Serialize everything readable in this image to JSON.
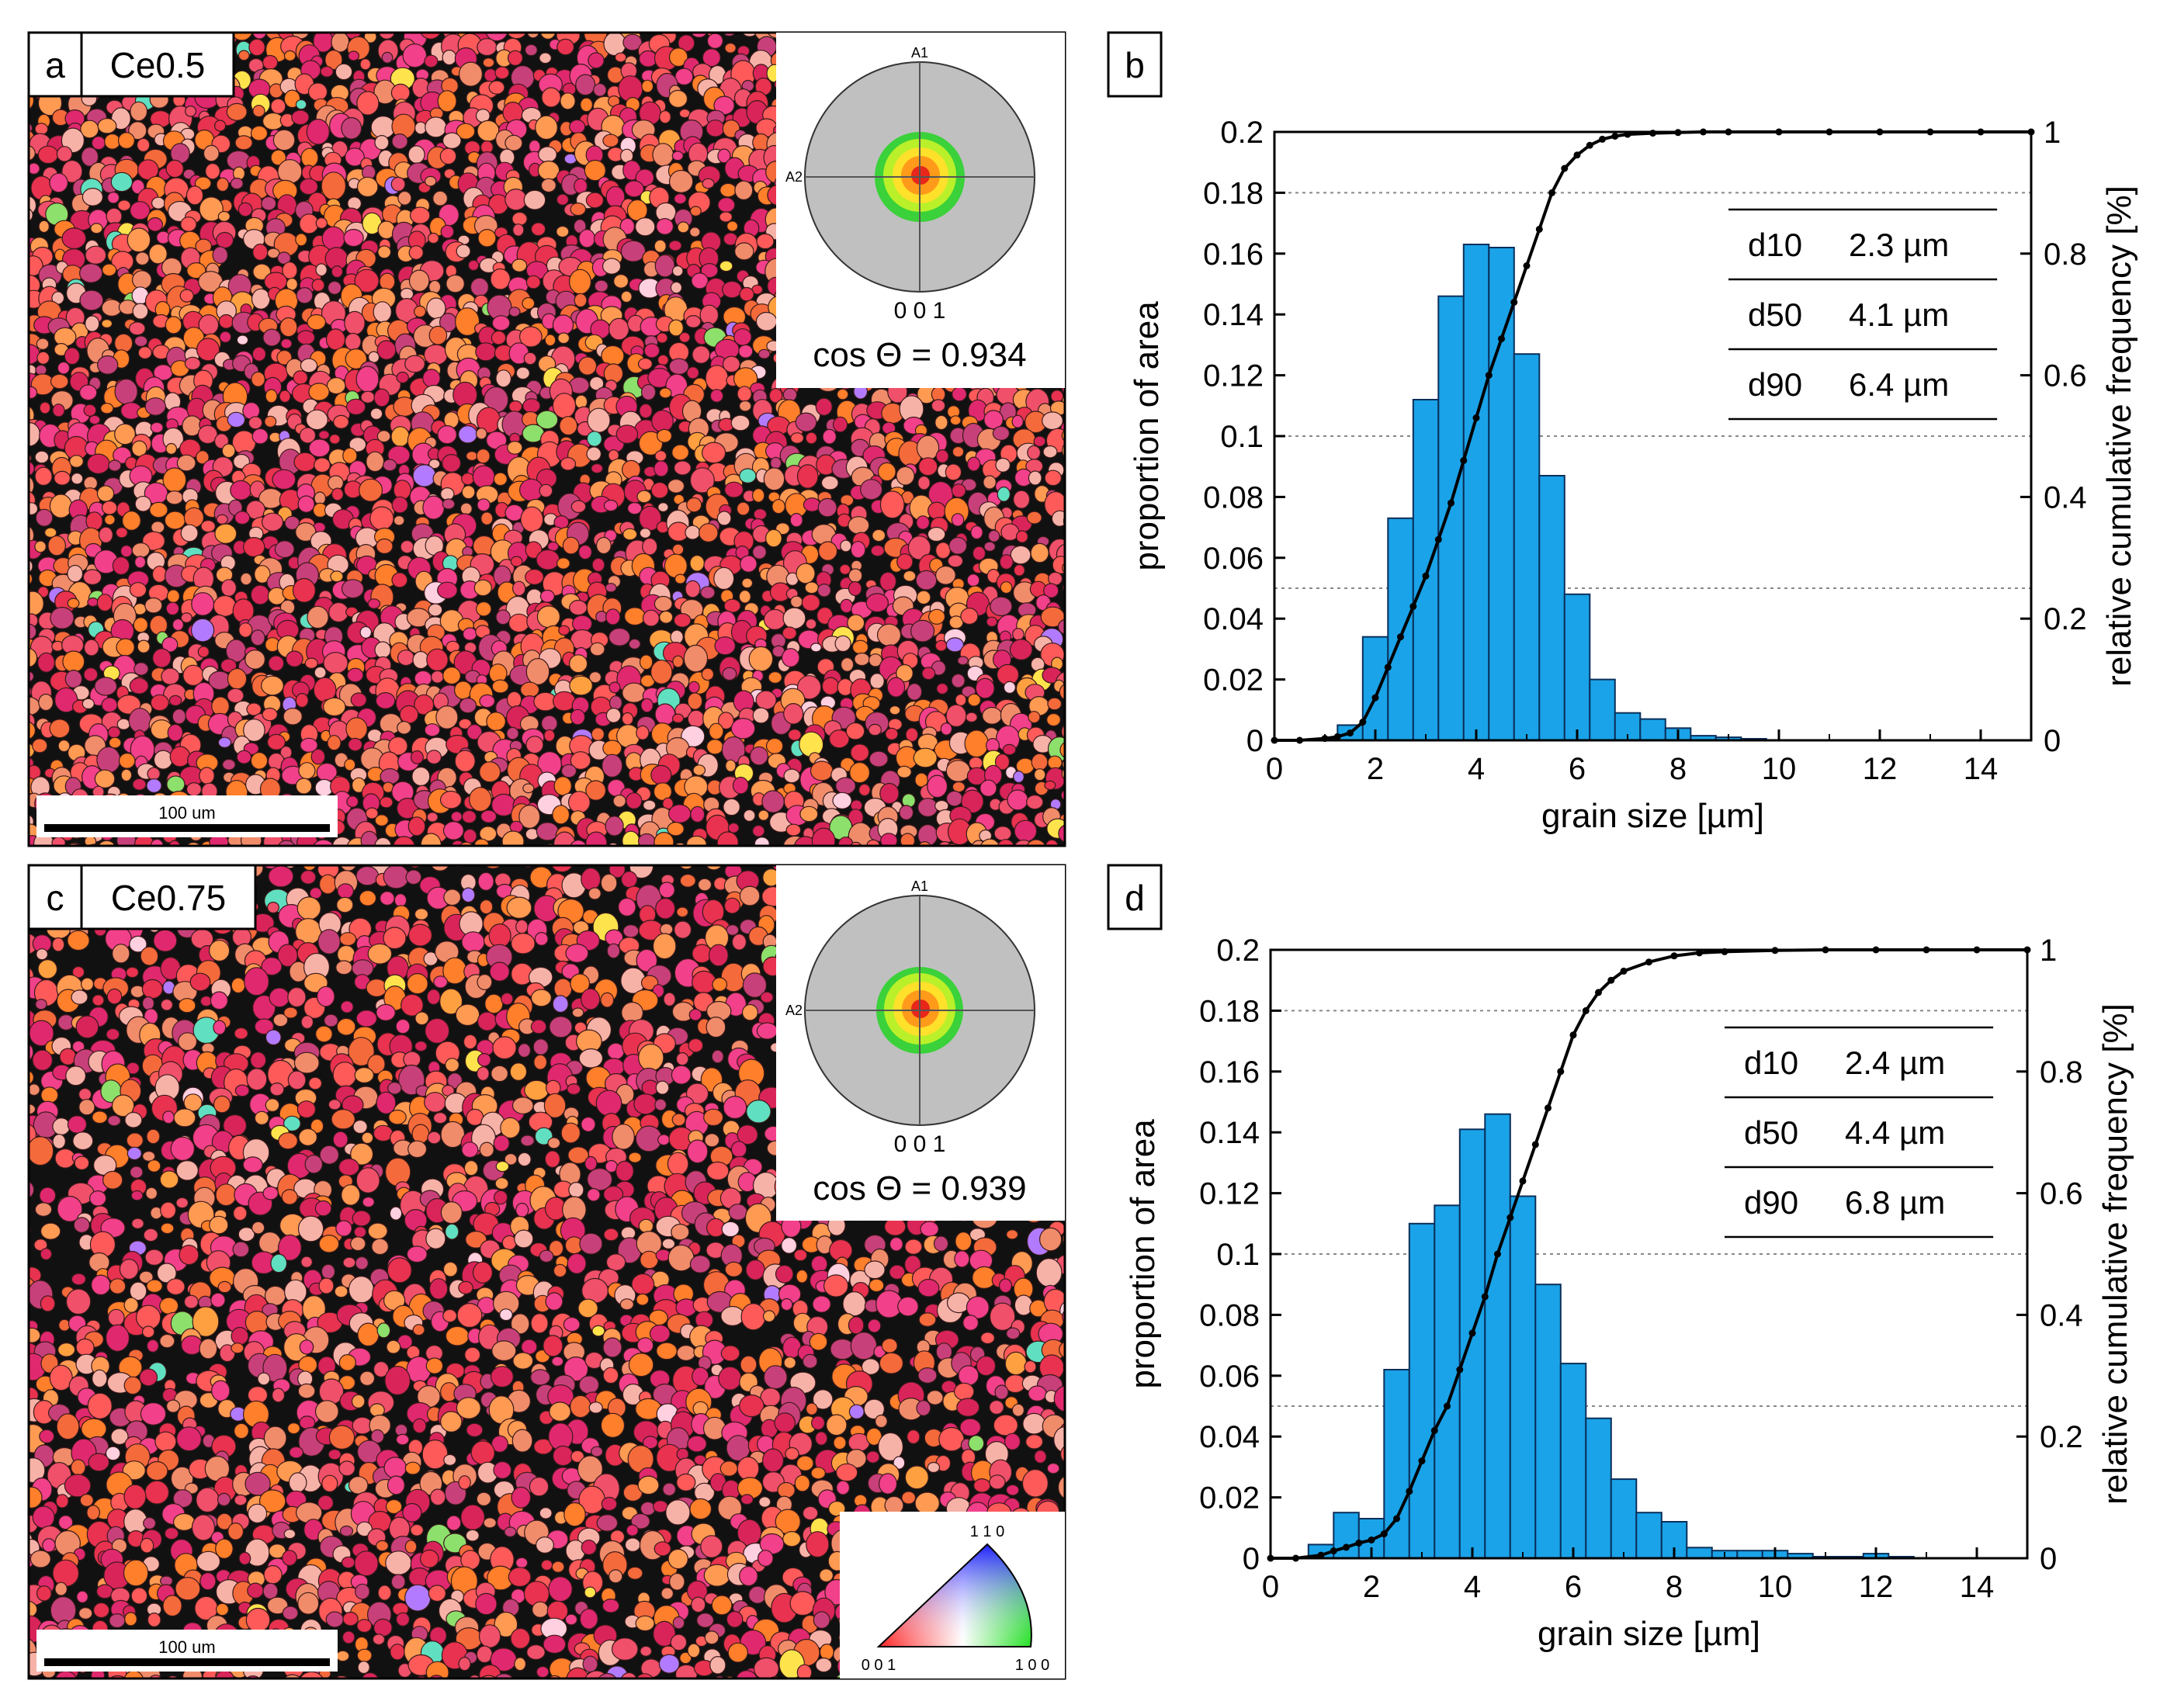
{
  "colors": {
    "bar": "#1aa3e8",
    "bar_edge": "#0b2f5a",
    "curve": "#000000",
    "grain_palette": [
      "#e8324f",
      "#f0506a",
      "#f56a3a",
      "#ff7f2a",
      "#f2408a",
      "#e0286e",
      "#ff9a52",
      "#d9245a",
      "#f7b2a8",
      "#c8407a",
      "#ff5a5a",
      "#f08c6a"
    ],
    "grain_accent": [
      "#ffe34d",
      "#b27bff",
      "#8de06b",
      "#ffd0e0",
      "#60e0c0",
      "#ffa040"
    ],
    "pole_levels": [
      "#3ad13a",
      "#b9f02a",
      "#ffe02a",
      "#ff9a1a",
      "#e8261a"
    ],
    "pole_bg": "#c0c0c0"
  },
  "panels": {
    "a": {
      "letter": "a",
      "sample": "Ce0.5",
      "scalebar": "100 um",
      "pole": {
        "top": "A1",
        "left": "A2",
        "bottom": "0 0 1",
        "cos": "cos Θ = 0.934"
      }
    },
    "c": {
      "letter": "c",
      "sample": "Ce0.75",
      "scalebar": "100 um",
      "pole": {
        "top": "A1",
        "left": "A2",
        "bottom": "0 0 1",
        "cos": "cos Θ = 0.939"
      },
      "ipf_key": {
        "top": "1 1 0",
        "bottom_left": "0 0 1",
        "bottom_right": "1 0 0"
      }
    }
  },
  "chart_data": [
    {
      "panel": "b",
      "type": "bar",
      "xlabel": "grain size [µm]",
      "ylabel": "proportion of area",
      "y2label": "relative cumulative frequency [%]",
      "xlim": [
        0,
        15
      ],
      "ylim": [
        0,
        0.2
      ],
      "y2lim": [
        0,
        1
      ],
      "xticks": [
        "0",
        "2",
        "4",
        "6",
        "8",
        "10",
        "12",
        "14"
      ],
      "yticks": [
        "0",
        "0.02",
        "0.04",
        "0.06",
        "0.08",
        "0.1",
        "0.12",
        "0.14",
        "0.16",
        "0.18",
        "0.2"
      ],
      "y2ticks": [
        "0",
        "0.2",
        "0.4",
        "0.6",
        "0.8",
        "1"
      ],
      "grid_y2": [
        0.25,
        0.5,
        0.9
      ],
      "bar_width": 0.5,
      "bar_x": [
        1,
        1.5,
        2,
        2.5,
        3,
        3.5,
        4,
        4.5,
        5,
        5.5,
        6,
        6.5,
        7,
        7.5,
        8,
        8.5,
        9,
        9.5
      ],
      "bar_values": [
        0.0005,
        0.005,
        0.034,
        0.073,
        0.112,
        0.146,
        0.163,
        0.162,
        0.127,
        0.087,
        0.048,
        0.02,
        0.009,
        0.007,
        0.004,
        0.0015,
        0.001,
        0.0005
      ],
      "cdf_x": [
        0,
        0.5,
        1,
        1.25,
        1.5,
        1.75,
        2,
        2.25,
        2.5,
        2.75,
        3,
        3.25,
        3.5,
        3.75,
        4,
        4.25,
        4.5,
        4.75,
        5,
        5.25,
        5.5,
        5.75,
        6,
        6.25,
        6.5,
        6.75,
        7,
        7.5,
        8,
        8.5,
        9,
        10,
        11,
        12,
        13,
        14,
        15
      ],
      "cdf_y": [
        0,
        0,
        0.003,
        0.006,
        0.012,
        0.03,
        0.07,
        0.12,
        0.17,
        0.22,
        0.27,
        0.33,
        0.39,
        0.46,
        0.53,
        0.6,
        0.66,
        0.72,
        0.78,
        0.84,
        0.9,
        0.94,
        0.962,
        0.978,
        0.988,
        0.993,
        0.996,
        0.998,
        0.999,
        1,
        1,
        1,
        1,
        1,
        1,
        1,
        1
      ],
      "stats": [
        {
          "label": "d10",
          "value": "2.3 µm"
        },
        {
          "label": "d50",
          "value": "4.1 µm"
        },
        {
          "label": "d90",
          "value": "6.4 µm"
        }
      ]
    },
    {
      "panel": "d",
      "type": "bar",
      "xlabel": "grain size [µm]",
      "ylabel": "proportion of area",
      "y2label": "relative cumulative frequency [%]",
      "xlim": [
        0,
        15
      ],
      "ylim": [
        0,
        0.2
      ],
      "y2lim": [
        0,
        1
      ],
      "xticks": [
        "0",
        "2",
        "4",
        "6",
        "8",
        "10",
        "12",
        "14"
      ],
      "yticks": [
        "0",
        "0.02",
        "0.04",
        "0.06",
        "0.08",
        "0.1",
        "0.12",
        "0.14",
        "0.16",
        "0.18",
        "0.2"
      ],
      "y2ticks": [
        "0",
        "0.2",
        "0.4",
        "0.6",
        "0.8",
        "1"
      ],
      "grid_y2": [
        0.25,
        0.5,
        0.9
      ],
      "bar_width": 0.5,
      "bar_x": [
        1,
        1.5,
        2,
        2.5,
        3,
        3.5,
        4,
        4.5,
        5,
        5.5,
        6,
        6.5,
        7,
        7.5,
        8,
        8.5,
        9,
        9.5,
        10,
        10.5,
        11,
        11.5,
        12,
        12.5
      ],
      "bar_values": [
        0.0045,
        0.015,
        0.013,
        0.062,
        0.11,
        0.116,
        0.141,
        0.146,
        0.119,
        0.09,
        0.064,
        0.046,
        0.026,
        0.015,
        0.012,
        0.0035,
        0.0025,
        0.0025,
        0.0025,
        0.0015,
        0.0005,
        0.0005,
        0.0015,
        0.0005
      ],
      "cdf_x": [
        0,
        0.5,
        1,
        1.25,
        1.5,
        1.75,
        2,
        2.25,
        2.5,
        2.75,
        3,
        3.25,
        3.5,
        3.75,
        4,
        4.25,
        4.5,
        4.75,
        5,
        5.25,
        5.5,
        5.75,
        6,
        6.25,
        6.5,
        6.75,
        7,
        7.5,
        8,
        8.5,
        9,
        10,
        11,
        12,
        13,
        14,
        15
      ],
      "cdf_y": [
        0,
        0,
        0.005,
        0.012,
        0.018,
        0.025,
        0.03,
        0.04,
        0.065,
        0.11,
        0.16,
        0.21,
        0.25,
        0.31,
        0.37,
        0.43,
        0.5,
        0.56,
        0.62,
        0.68,
        0.74,
        0.8,
        0.86,
        0.9,
        0.93,
        0.95,
        0.965,
        0.98,
        0.99,
        0.995,
        0.997,
        0.999,
        1,
        1,
        1,
        1,
        1
      ],
      "stats": [
        {
          "label": "d10",
          "value": "2.4 µm"
        },
        {
          "label": "d50",
          "value": "4.4 µm"
        },
        {
          "label": "d90",
          "value": "6.8 µm"
        }
      ]
    }
  ]
}
